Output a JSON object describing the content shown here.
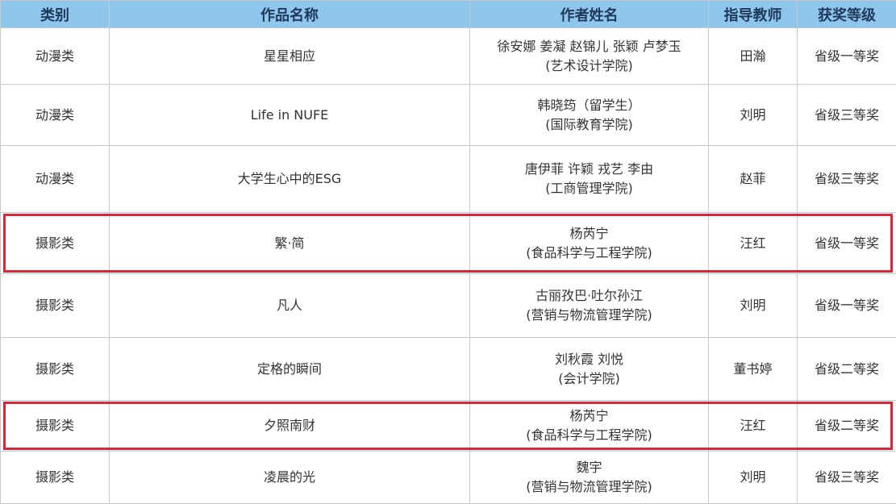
{
  "headers": [
    "类别",
    "作品名称",
    "作者姓名",
    "指导教师",
    "获奖等级"
  ],
  "rows": [
    {
      "category": "动漫类",
      "title": "星星相应",
      "authors": "徐安娜 姜凝 赵锦儿 张颖 卢梦玉",
      "college": "(艺术设计学院)",
      "advisor": "田瀚",
      "award": "省级一等奖",
      "highlighted": false
    },
    {
      "category": "动漫类",
      "title": "Life in NUFE",
      "authors": "韩晓筠（留学生）",
      "college": "(国际教育学院)",
      "advisor": "刘明",
      "award": "省级三等奖",
      "highlighted": false
    },
    {
      "category": "动漫类",
      "title": "大学生心中的ESG",
      "authors": "唐伊菲 许颖 戎艺 李由",
      "college": "(工商管理学院)",
      "advisor": "赵菲",
      "award": "省级三等奖",
      "highlighted": false
    },
    {
      "category": "摄影类",
      "title": "繁·简",
      "authors": "杨芮宁",
      "college": "(食品科学与工程学院)",
      "advisor": "汪红",
      "award": "省级一等奖",
      "highlighted": true
    },
    {
      "category": "摄影类",
      "title": "凡人",
      "authors": "古丽孜巴·吐尔孙江",
      "college": "(营销与物流管理学院)",
      "advisor": "刘明",
      "award": "省级一等奖",
      "highlighted": false
    },
    {
      "category": "摄影类",
      "title": "定格的瞬间",
      "authors": "刘秋霞 刘悦",
      "college": "(会计学院)",
      "advisor": "董书婷",
      "award": "省级二等奖",
      "highlighted": false
    },
    {
      "category": "摄影类",
      "title": "夕照南财",
      "authors": "杨芮宁",
      "college": "(食品科学与工程学院)",
      "advisor": "汪红",
      "award": "省级二等奖",
      "highlighted": true
    },
    {
      "category": "摄影类",
      "title": "凌晨的光",
      "authors": "魏宇",
      "college": "(营销与物流管理学院)",
      "advisor": "刘明",
      "award": "省级三等奖",
      "highlighted": false
    }
  ],
  "colors": {
    "header_bg": "#8fc6ec",
    "highlight": "#d9263a"
  }
}
